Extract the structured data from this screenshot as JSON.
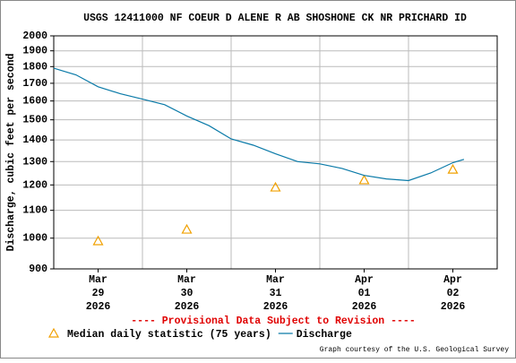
{
  "chart_data": {
    "type": "line",
    "title": "USGS 12411000 NF COEUR D ALENE R AB SHOSHONE CK NR PRICHARD ID",
    "ylabel": "Discharge, cubic feet per second",
    "yscale": "log",
    "ylim": [
      900,
      2000
    ],
    "yticks": [
      900,
      1000,
      1100,
      1200,
      1300,
      1400,
      1500,
      1600,
      1700,
      1800,
      1900,
      2000
    ],
    "xlim": [
      "2026-03-29T00:00",
      "2026-04-03T00:00"
    ],
    "xticks": [
      {
        "value": "2026-03-29T12:00",
        "label": [
          "Mar",
          "29",
          "2026"
        ]
      },
      {
        "value": "2026-03-30T12:00",
        "label": [
          "Mar",
          "30",
          "2026"
        ]
      },
      {
        "value": "2026-03-31T12:00",
        "label": [
          "Mar",
          "31",
          "2026"
        ]
      },
      {
        "value": "2026-04-01T12:00",
        "label": [
          "Apr",
          "01",
          "2026"
        ]
      },
      {
        "value": "2026-04-02T12:00",
        "label": [
          "Apr",
          "02",
          "2026"
        ]
      }
    ],
    "xgrid": [
      "2026-03-30T00:00",
      "2026-03-31T00:00",
      "2026-04-01T00:00",
      "2026-04-02T00:00"
    ],
    "grid": true,
    "annotation": "---- Provisional Data Subject to Revision ----",
    "annotation_color": "#e00000",
    "credit": "Graph courtesy of the U.S. Geological Survey",
    "series": [
      {
        "name": "Median daily statistic (75 years)",
        "color": "#f0a000",
        "style": "marker",
        "x": [
          "2026-03-29T12:00",
          "2026-03-30T12:00",
          "2026-03-31T12:00",
          "2026-04-01T12:00",
          "2026-04-02T12:00"
        ],
        "values": [
          990,
          1030,
          1190,
          1220,
          1265
        ]
      },
      {
        "name": "Discharge",
        "color": "#0a7aa8",
        "style": "line",
        "x": [
          "2026-03-29T00:00",
          "2026-03-29T06:00",
          "2026-03-29T12:00",
          "2026-03-29T18:00",
          "2026-03-30T00:00",
          "2026-03-30T06:00",
          "2026-03-30T12:00",
          "2026-03-30T18:00",
          "2026-03-31T00:00",
          "2026-03-31T06:00",
          "2026-03-31T12:00",
          "2026-03-31T18:00",
          "2026-04-01T00:00",
          "2026-04-01T06:00",
          "2026-04-01T12:00",
          "2026-04-01T18:00",
          "2026-04-02T00:00",
          "2026-04-02T06:00",
          "2026-04-02T12:00",
          "2026-04-02T15:00"
        ],
        "values": [
          1790,
          1750,
          1680,
          1640,
          1610,
          1580,
          1520,
          1470,
          1405,
          1375,
          1335,
          1300,
          1290,
          1270,
          1240,
          1225,
          1218,
          1250,
          1295,
          1310
        ]
      }
    ]
  }
}
